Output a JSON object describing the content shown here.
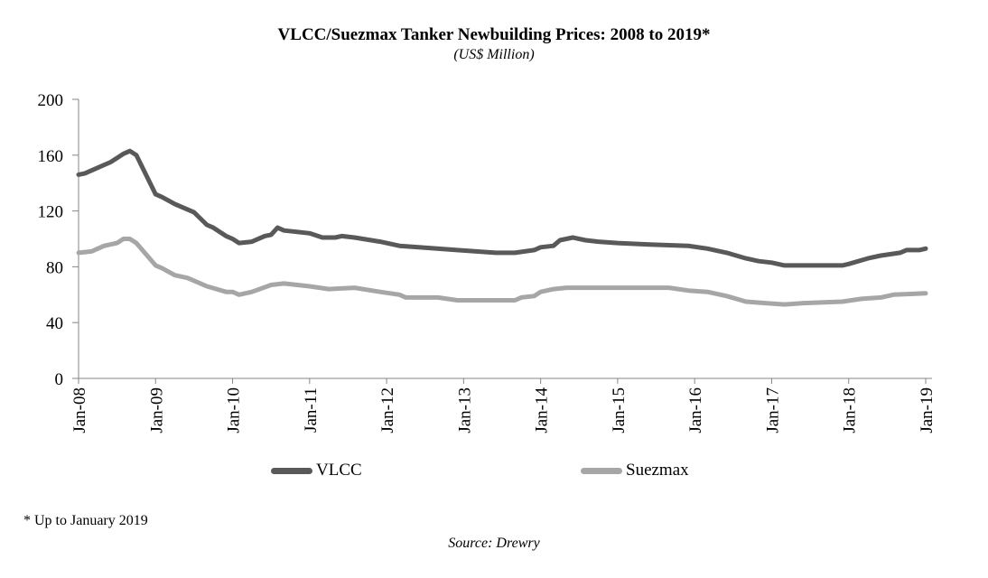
{
  "chart_data": {
    "type": "line",
    "title": "VLCC/Suezmax Tanker Newbuilding Prices: 2008 to 2019*",
    "subtitle": "(US$ Million)",
    "ylim": [
      0,
      200
    ],
    "yticks": [
      "0",
      "40",
      "80",
      "120",
      "160",
      "200"
    ],
    "xlim": [
      "2008-01",
      "2019-01"
    ],
    "xticks": [
      "Jan-08",
      "Jan-09",
      "Jan-10",
      "Jan-11",
      "Jan-12",
      "Jan-13",
      "Jan-14",
      "Jan-15",
      "Jan-16",
      "Jan-17",
      "Jan-18",
      "Jan-19"
    ],
    "grid": false,
    "legend": "bottom",
    "series": [
      {
        "name": "VLCC",
        "color": "#595959",
        "points": [
          [
            "2008-01",
            146
          ],
          [
            "2008-02",
            147
          ],
          [
            "2008-04",
            151
          ],
          [
            "2008-06",
            155
          ],
          [
            "2008-08",
            161
          ],
          [
            "2008-09",
            163
          ],
          [
            "2008-10",
            160
          ],
          [
            "2009-01",
            132
          ],
          [
            "2009-02",
            130
          ],
          [
            "2009-04",
            125
          ],
          [
            "2009-07",
            119
          ],
          [
            "2009-09",
            110
          ],
          [
            "2009-10",
            108
          ],
          [
            "2009-12",
            102
          ],
          [
            "2010-01",
            100
          ],
          [
            "2010-02",
            97
          ],
          [
            "2010-04",
            98
          ],
          [
            "2010-06",
            102
          ],
          [
            "2010-07",
            103
          ],
          [
            "2010-08",
            108
          ],
          [
            "2010-09",
            106
          ],
          [
            "2011-01",
            104
          ],
          [
            "2011-03",
            101
          ],
          [
            "2011-05",
            101
          ],
          [
            "2011-06",
            102
          ],
          [
            "2011-08",
            101
          ],
          [
            "2011-12",
            98
          ],
          [
            "2012-03",
            95
          ],
          [
            "2012-06",
            94
          ],
          [
            "2012-12",
            92
          ],
          [
            "2013-06",
            90
          ],
          [
            "2013-09",
            90
          ],
          [
            "2013-12",
            92
          ],
          [
            "2014-01",
            94
          ],
          [
            "2014-03",
            95
          ],
          [
            "2014-04",
            99
          ],
          [
            "2014-06",
            101
          ],
          [
            "2014-08",
            99
          ],
          [
            "2014-10",
            98
          ],
          [
            "2015-01",
            97
          ],
          [
            "2015-06",
            96
          ],
          [
            "2015-12",
            95
          ],
          [
            "2016-03",
            93
          ],
          [
            "2016-06",
            90
          ],
          [
            "2016-09",
            86
          ],
          [
            "2016-11",
            84
          ],
          [
            "2017-01",
            83
          ],
          [
            "2017-03",
            81
          ],
          [
            "2017-12",
            81
          ],
          [
            "2018-01",
            82
          ],
          [
            "2018-04",
            86
          ],
          [
            "2018-06",
            88
          ],
          [
            "2018-09",
            90
          ],
          [
            "2018-10",
            92
          ],
          [
            "2018-12",
            92
          ],
          [
            "2019-01",
            93
          ]
        ]
      },
      {
        "name": "Suezmax",
        "color": "#a6a6a6",
        "points": [
          [
            "2008-01",
            90
          ],
          [
            "2008-03",
            91
          ],
          [
            "2008-05",
            95
          ],
          [
            "2008-07",
            97
          ],
          [
            "2008-08",
            100
          ],
          [
            "2008-09",
            100
          ],
          [
            "2008-10",
            97
          ],
          [
            "2009-01",
            81
          ],
          [
            "2009-02",
            79
          ],
          [
            "2009-04",
            74
          ],
          [
            "2009-06",
            72
          ],
          [
            "2009-08",
            68
          ],
          [
            "2009-09",
            66
          ],
          [
            "2009-12",
            62
          ],
          [
            "2010-01",
            62
          ],
          [
            "2010-02",
            60
          ],
          [
            "2010-04",
            62
          ],
          [
            "2010-07",
            67
          ],
          [
            "2010-09",
            68
          ],
          [
            "2011-01",
            66
          ],
          [
            "2011-04",
            64
          ],
          [
            "2011-08",
            65
          ],
          [
            "2011-12",
            62
          ],
          [
            "2012-03",
            60
          ],
          [
            "2012-04",
            58
          ],
          [
            "2012-09",
            58
          ],
          [
            "2012-12",
            56
          ],
          [
            "2013-06",
            56
          ],
          [
            "2013-09",
            56
          ],
          [
            "2013-10",
            58
          ],
          [
            "2013-12",
            59
          ],
          [
            "2014-01",
            62
          ],
          [
            "2014-03",
            64
          ],
          [
            "2014-05",
            65
          ],
          [
            "2015-06",
            65
          ],
          [
            "2015-09",
            65
          ],
          [
            "2015-12",
            63
          ],
          [
            "2016-03",
            62
          ],
          [
            "2016-06",
            59
          ],
          [
            "2016-09",
            55
          ],
          [
            "2016-12",
            54
          ],
          [
            "2017-03",
            53
          ],
          [
            "2017-06",
            54
          ],
          [
            "2017-12",
            55
          ],
          [
            "2018-03",
            57
          ],
          [
            "2018-06",
            58
          ],
          [
            "2018-08",
            60
          ],
          [
            "2019-01",
            61
          ]
        ]
      }
    ]
  },
  "footnote": "* Up to January 2019",
  "source": "Source: Drewry"
}
